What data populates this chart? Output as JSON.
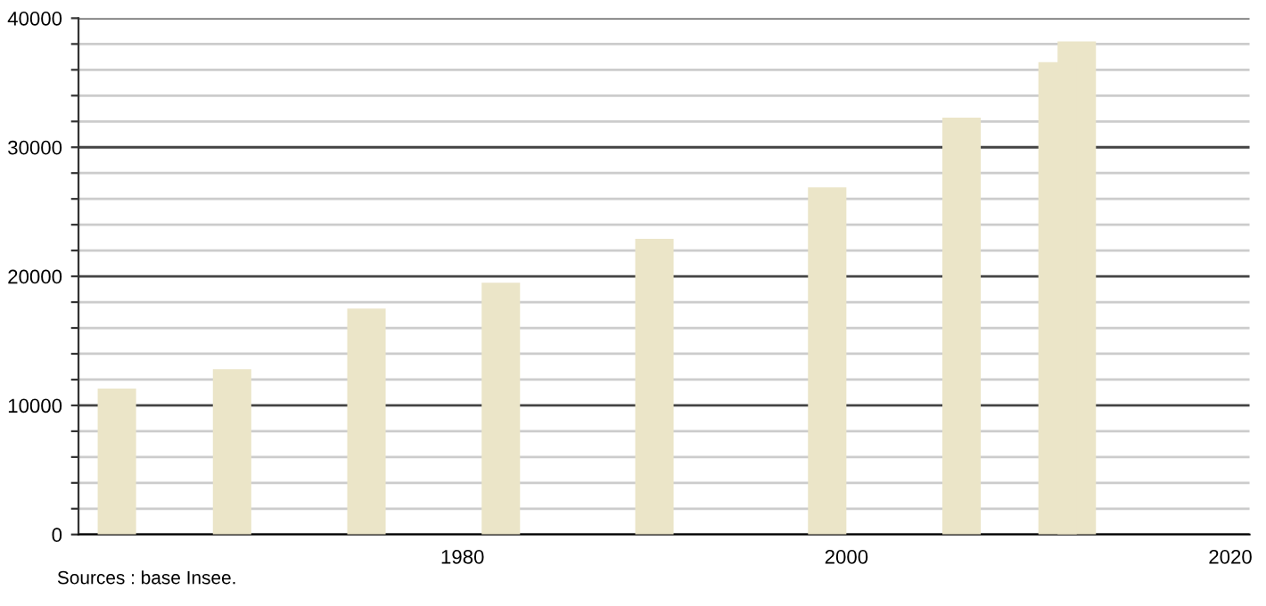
{
  "chart_data": {
    "type": "bar",
    "x": [
      1962,
      1968,
      1975,
      1982,
      1990,
      1999,
      2006,
      2011,
      2012
    ],
    "values": [
      11300,
      12800,
      17500,
      19500,
      22900,
      26900,
      32300,
      36600,
      38200
    ],
    "color": "#ebe5c8",
    "xlim": [
      1960,
      2021
    ],
    "xticks": [
      1980,
      2000,
      2020
    ],
    "ylim": [
      0,
      40000
    ],
    "yticks": [
      0,
      {
        "value": 2000,
        "label": null
      },
      {
        "value": 4000,
        "label": null
      },
      {
        "value": 6000,
        "label": null
      },
      {
        "value": 8000,
        "label": null
      },
      10000,
      {
        "value": 12000,
        "label": null
      },
      {
        "value": 14000,
        "label": null
      },
      {
        "value": 16000,
        "label": null
      },
      {
        "value": 18000,
        "label": null
      },
      20000,
      {
        "value": 22000,
        "label": null
      },
      {
        "value": 24000,
        "label": null
      },
      {
        "value": 26000,
        "label": null
      },
      {
        "value": 28000,
        "label": null
      },
      30000,
      {
        "value": 32000,
        "label": null
      },
      {
        "value": 34000,
        "label": null
      },
      {
        "value": 36000,
        "label": null
      },
      {
        "value": 38000,
        "label": null
      },
      40000
    ],
    "grid": "y",
    "annotations": [
      "Sources : base Insee."
    ]
  }
}
